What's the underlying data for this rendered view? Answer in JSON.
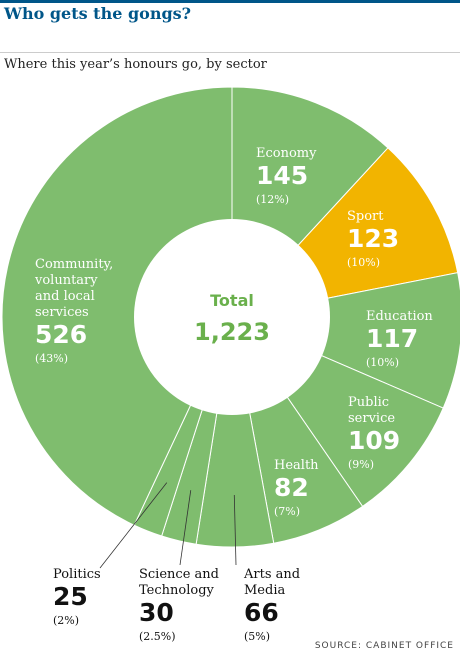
{
  "header": {
    "title": "Who gets the gongs?",
    "subtitle": "Where this year’s honours go, by sector",
    "source": "SOURCE: CABINET OFFICE"
  },
  "center": {
    "label": "Total",
    "value": "1,223"
  },
  "colors": {
    "slice": "#7fbd6e",
    "highlight": "#f2b400",
    "centerText": "#6ab04c",
    "divider": "#ffffff",
    "leader": "#333333"
  },
  "chart_data": {
    "type": "pie",
    "title": "Who gets the gongs?",
    "subtitle": "Where this year’s honours go, by sector",
    "total": 1223,
    "slices": [
      {
        "name": "Economy",
        "value": 145,
        "value_label": "145",
        "pct": "(12%)",
        "highlight": false
      },
      {
        "name": "Sport",
        "value": 123,
        "value_label": "123",
        "pct": "(10%)",
        "highlight": true
      },
      {
        "name": "Education",
        "value": 117,
        "value_label": "117",
        "pct": "(10%)",
        "highlight": false
      },
      {
        "name": "Public\nservice",
        "value": 109,
        "value_label": "109",
        "pct": "(9%)",
        "highlight": false
      },
      {
        "name": "Health",
        "value": 82,
        "value_label": "82",
        "pct": "(7%)",
        "highlight": false
      },
      {
        "name": "Arts and\nMedia",
        "value": 66,
        "value_label": "66",
        "pct": "(5%)",
        "highlight": false
      },
      {
        "name": "Science and\nTechnology",
        "value": 30,
        "value_label": "30",
        "pct": "(2.5%)",
        "highlight": false
      },
      {
        "name": "Politics",
        "value": 25,
        "value_label": "25",
        "pct": "(2%)",
        "highlight": false
      },
      {
        "name": "Community,\nvoluntary\nand local\nservices",
        "value": 526,
        "value_label": "526",
        "pct": "(43%)",
        "highlight": false
      }
    ]
  }
}
